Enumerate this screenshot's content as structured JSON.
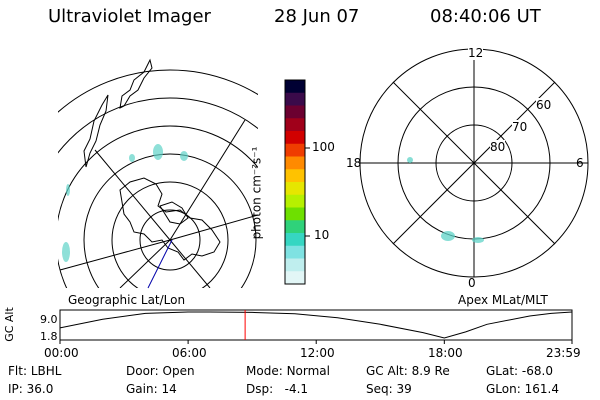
{
  "header": {
    "instrument": "Ultraviolet Imager",
    "date": "28 Jun 07",
    "time": "08:40:06 UT"
  },
  "left_panel": {
    "label": "Geographic Lat/Lon"
  },
  "right_panel": {
    "label": "Apex MLat/MLT",
    "mlt_labels": {
      "top": "12",
      "left": "18",
      "right": "6",
      "bottom": "0"
    },
    "lat_labels": [
      "60",
      "70",
      "80"
    ]
  },
  "colorbar": {
    "unit_label": "photon cm⁻²s⁻¹",
    "tick_labels": [
      "100",
      "10"
    ],
    "colors": [
      "#000033",
      "#3a0a4a",
      "#6b0030",
      "#a0001a",
      "#d10000",
      "#ef3d00",
      "#ff8a00",
      "#ffc200",
      "#e6e600",
      "#b6f000",
      "#6ee000",
      "#2fd27a",
      "#36d6c2",
      "#7fe2e2",
      "#bfeeee",
      "#e2f6f6"
    ]
  },
  "chart_data": {
    "type": "line",
    "title": "",
    "ylabel": "GC Alt",
    "y_tick_labels": [
      "9.0",
      "1.8"
    ],
    "x_tick_labels": [
      "00:00",
      "06:00",
      "12:00",
      "18:00",
      "23:59"
    ],
    "ylim": [
      1.8,
      9.0
    ],
    "x_hours": [
      0,
      2,
      4,
      6,
      7,
      9,
      11,
      13,
      15,
      17,
      18,
      19,
      20,
      22,
      23,
      23.98
    ],
    "alt_re": [
      4.6,
      7.0,
      8.6,
      9.0,
      9.0,
      8.9,
      8.5,
      7.4,
      5.6,
      3.3,
      1.8,
      3.5,
      5.6,
      7.9,
      8.6,
      9.0
    ],
    "current_time_hours": 8.67
  },
  "footer": {
    "row1": [
      {
        "label": "Flt:",
        "value": "LBHL"
      },
      {
        "label": "Door:",
        "value": "Open"
      },
      {
        "label": "Mode:",
        "value": "Normal"
      },
      {
        "label": "GC Alt:",
        "value": "8.9 Re"
      },
      {
        "label": "GLat:",
        "value": "-68.0"
      }
    ],
    "row2": [
      {
        "label": "IP:",
        "value": "36.0"
      },
      {
        "label": "Gain:",
        "value": "14"
      },
      {
        "label": "Dsp:",
        "value": "-4.1"
      },
      {
        "label": "Seq:",
        "value": "39"
      },
      {
        "label": "GLon:",
        "value": "161.4"
      }
    ]
  },
  "colors": {
    "accent_marker": "#ff0000",
    "track": "#0000aa",
    "aurora": "#5fd3c8"
  }
}
